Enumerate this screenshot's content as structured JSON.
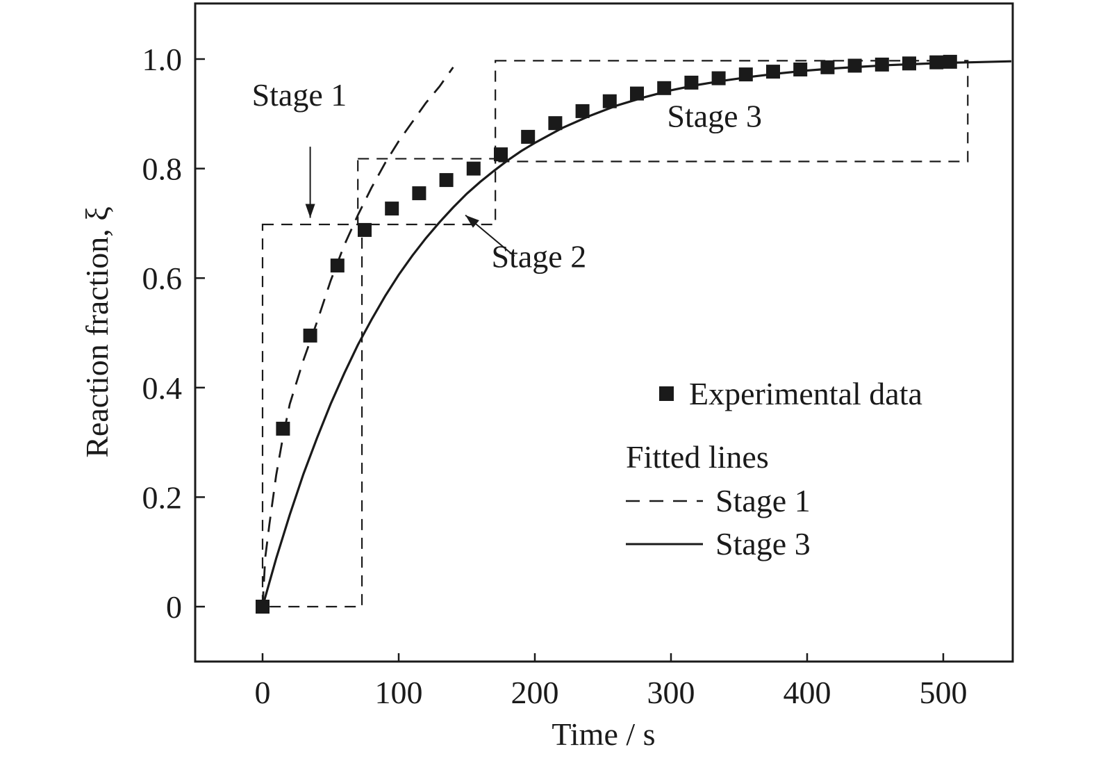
{
  "chart_data": {
    "type": "scatter",
    "xlabel": "Time / s",
    "ylabel": "Reaction fraction, ξ",
    "xlim": [
      -50,
      550
    ],
    "ylim": [
      -0.1,
      1.1
    ],
    "xticks": [
      0,
      100,
      200,
      300,
      400,
      500
    ],
    "yticks": [
      0,
      0.2,
      0.4,
      0.6,
      0.8,
      1.0
    ],
    "xtick_labels": [
      "0",
      "100",
      "200",
      "300",
      "400",
      "500"
    ],
    "ytick_labels": [
      "0",
      "0.2",
      "0.4",
      "0.6",
      "0.8",
      "1.0"
    ],
    "grid": false,
    "legend_position": "middle-right",
    "series": [
      {
        "name": "Experimental data",
        "kind": "markers",
        "marker": "square",
        "x": [
          0,
          15,
          35,
          55,
          75,
          95,
          115,
          135,
          155,
          175,
          195,
          215,
          235,
          255,
          275,
          295,
          315,
          335,
          355,
          375,
          395,
          415,
          435,
          455,
          475,
          495,
          505
        ],
        "y": [
          0,
          0.325,
          0.495,
          0.623,
          0.688,
          0.727,
          0.755,
          0.779,
          0.8,
          0.826,
          0.858,
          0.883,
          0.905,
          0.923,
          0.937,
          0.947,
          0.957,
          0.965,
          0.972,
          0.977,
          0.981,
          0.985,
          0.988,
          0.99,
          0.992,
          0.994,
          0.995
        ]
      },
      {
        "name": "Stage 1",
        "kind": "line",
        "style": "dashed",
        "x": [
          0,
          2,
          5,
          10,
          15,
          20,
          30,
          40,
          50,
          60,
          70,
          80,
          90,
          100,
          110,
          120,
          130,
          140
        ],
        "y": [
          0,
          0.09,
          0.15,
          0.24,
          0.31,
          0.37,
          0.45,
          0.52,
          0.595,
          0.66,
          0.715,
          0.765,
          0.81,
          0.85,
          0.885,
          0.92,
          0.95,
          0.985
        ]
      },
      {
        "name": "Stage 3",
        "kind": "line",
        "style": "solid",
        "x": [
          0,
          10,
          20,
          30,
          40,
          50,
          60,
          70,
          80,
          90,
          100,
          110,
          120,
          130,
          140,
          150,
          160,
          170,
          180,
          190,
          200,
          220,
          240,
          260,
          280,
          300,
          320,
          340,
          360,
          380,
          400,
          420,
          440,
          460,
          480,
          500,
          520,
          550
        ],
        "y": [
          0,
          0.088,
          0.168,
          0.242,
          0.308,
          0.37,
          0.426,
          0.478,
          0.524,
          0.567,
          0.606,
          0.641,
          0.673,
          0.702,
          0.729,
          0.754,
          0.776,
          0.796,
          0.815,
          0.832,
          0.847,
          0.874,
          0.896,
          0.915,
          0.93,
          0.943,
          0.953,
          0.961,
          0.968,
          0.974,
          0.979,
          0.983,
          0.986,
          0.989,
          0.991,
          0.993,
          0.994,
          0.996
        ]
      }
    ],
    "regions": [
      {
        "x0": 0,
        "x1": 73,
        "y0": 0,
        "y1": 0.698
      },
      {
        "x0": 70,
        "x1": 171,
        "y0": 0.698,
        "y1": 0.818
      },
      {
        "x0": 171,
        "x1": 518,
        "y0": 0.813,
        "y1": 0.997
      }
    ],
    "annotations": [
      {
        "text": "Stage 1",
        "x": 27,
        "y": 0.915,
        "arrow_from": [
          35,
          0.84
        ],
        "arrow_to": [
          35,
          0.71
        ]
      },
      {
        "text": "Stage 2",
        "x": 203,
        "y": 0.62,
        "arrow_from": [
          185,
          0.64
        ],
        "arrow_to": [
          149,
          0.715
        ]
      },
      {
        "text": "Stage 3",
        "x": 332,
        "y": 0.876,
        "arrow_from": null,
        "arrow_to": null
      }
    ],
    "legend": {
      "marker_label": "Experimental data",
      "group_title": "Fitted lines",
      "dashed_label": "Stage 1",
      "solid_label": "Stage 3"
    },
    "colors": {
      "ink": "#1a1a1a",
      "background": "#ffffff"
    }
  }
}
